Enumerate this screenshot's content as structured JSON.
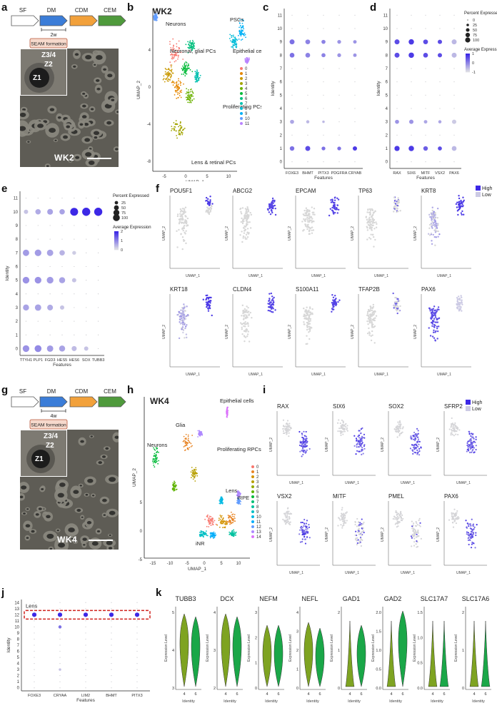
{
  "panels": {
    "a": "a",
    "b": "b",
    "c": "c",
    "d": "d",
    "e": "e",
    "f": "f",
    "g": "g",
    "h": "h",
    "i": "i",
    "j": "j",
    "k": "k"
  },
  "protocol": {
    "stages": [
      "SF",
      "DM",
      "CDM",
      "CEM"
    ],
    "colors": [
      "#ffffff",
      "#3b7dd8",
      "#f2a13b",
      "#4f9a3c"
    ],
    "seam_label": "SEAM formation",
    "duration_wk2": "2w",
    "duration_wk4": "4w"
  },
  "micrograph": {
    "wk2_label": "WK2",
    "wk4_label": "WK4",
    "zones": [
      "Z1",
      "Z2",
      "Z3/4"
    ]
  },
  "panel_b": {
    "title": "WK2",
    "xlabel": "UMAP_1",
    "ylabel": "UMAP_2",
    "annotations": [
      "Neurons",
      "Neuronal, glial PCs",
      "Proliferating PCs",
      "PSCs",
      "Epithelial cells",
      "Lens & retinal PCs"
    ],
    "legend": [
      "0",
      "1",
      "2",
      "3",
      "4",
      "5",
      "6",
      "7",
      "8",
      "9",
      "10",
      "11"
    ],
    "legend_colors": [
      "#f8766d",
      "#e58700",
      "#c99800",
      "#a3a500",
      "#6bb100",
      "#00ba38",
      "#00bf7d",
      "#00c0af",
      "#00bcd8",
      "#00b0f6",
      "#619cff",
      "#b983ff"
    ],
    "xticks": [
      "-5",
      "0",
      "5",
      "10"
    ],
    "yticks": [
      "4",
      "0",
      "-4",
      "-8"
    ]
  },
  "panel_h": {
    "xlabel": "UMAP_1",
    "ylabel": "UMAP_2",
    "title": "WK4",
    "annotations": [
      "Neurons",
      "Glia",
      "Epithelial cells",
      "Proliferating RPCs",
      "Lens",
      "iRPE",
      "iNR"
    ],
    "legend": [
      "0",
      "1",
      "2",
      "3",
      "4",
      "5",
      "6",
      "7",
      "8",
      "9",
      "10",
      "11",
      "12",
      "13",
      "14"
    ],
    "legend_colors": [
      "#f8766d",
      "#e88526",
      "#d39200",
      "#b79f00",
      "#93aa00",
      "#5eb300",
      "#00ba38",
      "#00bf74",
      "#00c19f",
      "#00bfc4",
      "#00b9e3",
      "#00adfa",
      "#619cff",
      "#ae87ff",
      "#db72fb"
    ],
    "xticks": [
      "-15",
      "-10",
      "-5",
      "0",
      "5",
      "10"
    ],
    "yticks": [
      "5",
      "0",
      "-5"
    ]
  },
  "chart_data": [
    {
      "type": "scatter",
      "id": "c",
      "xlabel": "Features",
      "ylabel": "Identity",
      "categories": [
        "FOXE3",
        "BHMT",
        "PITX3",
        "PDGFRA",
        "CRYAB"
      ],
      "identities": [
        "0",
        "1",
        "2",
        "3",
        "4",
        "5",
        "6",
        "7",
        "8",
        "9",
        "10",
        "11"
      ],
      "points": [
        {
          "x": "FOXE3",
          "y": "9",
          "pct": 60,
          "expr": 0.6
        },
        {
          "x": "BHMT",
          "y": "9",
          "pct": 55,
          "expr": 0.5
        },
        {
          "x": "PITX3",
          "y": "9",
          "pct": 40,
          "expr": 0.5
        },
        {
          "x": "PDGFRA",
          "y": "9",
          "pct": 35,
          "expr": 0.4
        },
        {
          "x": "CRYAB",
          "y": "9",
          "pct": 30,
          "expr": 0.4
        },
        {
          "x": "FOXE3",
          "y": "8",
          "pct": 55,
          "expr": 0.6
        },
        {
          "x": "BHMT",
          "y": "8",
          "pct": 55,
          "expr": 0.5
        },
        {
          "x": "PITX3",
          "y": "8",
          "pct": 40,
          "expr": 0.5
        },
        {
          "x": "PDGFRA",
          "y": "8",
          "pct": 35,
          "expr": 0.4
        },
        {
          "x": "CRYAB",
          "y": "8",
          "pct": 30,
          "expr": 0.4
        },
        {
          "x": "FOXE3",
          "y": "3",
          "pct": 40,
          "expr": 0.3
        },
        {
          "x": "BHMT",
          "y": "3",
          "pct": 25,
          "expr": 0.2
        },
        {
          "x": "PITX3",
          "y": "3",
          "pct": 15,
          "expr": 0.2
        },
        {
          "x": "FOXE3",
          "y": "1",
          "pct": 50,
          "expr": 0.6
        },
        {
          "x": "BHMT",
          "y": "1",
          "pct": 60,
          "expr": 0.8
        },
        {
          "x": "PITX3",
          "y": "1",
          "pct": 35,
          "expr": 0.6
        },
        {
          "x": "PDGFRA",
          "y": "1",
          "pct": 35,
          "expr": 0.6
        },
        {
          "x": "CRYAB",
          "y": "1",
          "pct": 45,
          "expr": 0.9
        }
      ]
    },
    {
      "type": "scatter",
      "id": "d",
      "xlabel": "Features",
      "ylabel": "Identity",
      "categories": [
        "RAX",
        "SIX6",
        "MITF",
        "VSX2",
        "PAX6"
      ],
      "identities": [
        "0",
        "1",
        "2",
        "3",
        "4",
        "5",
        "6",
        "7",
        "8",
        "9",
        "10",
        "11"
      ],
      "legend_title_size": "Percent Expressed",
      "size_levels": [
        0,
        25,
        50,
        75,
        100
      ],
      "legend_title_color": "Average Expression",
      "color_ticks": [
        "1",
        "0",
        "-1"
      ],
      "points": [
        {
          "x": "RAX",
          "y": "9",
          "pct": 60,
          "expr": 0.8
        },
        {
          "x": "SIX6",
          "y": "9",
          "pct": 70,
          "expr": 0.9
        },
        {
          "x": "MITF",
          "y": "9",
          "pct": 55,
          "expr": 0.8
        },
        {
          "x": "VSX2",
          "y": "9",
          "pct": 45,
          "expr": 0.8
        },
        {
          "x": "PAX6",
          "y": "9",
          "pct": 60,
          "expr": 0.2
        },
        {
          "x": "RAX",
          "y": "8",
          "pct": 60,
          "expr": 0.8
        },
        {
          "x": "SIX6",
          "y": "8",
          "pct": 70,
          "expr": 0.9
        },
        {
          "x": "MITF",
          "y": "8",
          "pct": 55,
          "expr": 0.8
        },
        {
          "x": "VSX2",
          "y": "8",
          "pct": 45,
          "expr": 0.8
        },
        {
          "x": "PAX6",
          "y": "8",
          "pct": 60,
          "expr": 0.2
        },
        {
          "x": "RAX",
          "y": "3",
          "pct": 40,
          "expr": 0.4
        },
        {
          "x": "SIX6",
          "y": "3",
          "pct": 45,
          "expr": 0.4
        },
        {
          "x": "MITF",
          "y": "3",
          "pct": 30,
          "expr": 0.3
        },
        {
          "x": "VSX2",
          "y": "3",
          "pct": 25,
          "expr": 0.3
        },
        {
          "x": "PAX6",
          "y": "3",
          "pct": 45,
          "expr": 0.1
        },
        {
          "x": "RAX",
          "y": "1",
          "pct": 65,
          "expr": 0.9
        },
        {
          "x": "SIX6",
          "y": "1",
          "pct": 70,
          "expr": 0.9
        },
        {
          "x": "MITF",
          "y": "1",
          "pct": 50,
          "expr": 0.7
        },
        {
          "x": "VSX2",
          "y": "1",
          "pct": 40,
          "expr": 0.8
        },
        {
          "x": "PAX6",
          "y": "1",
          "pct": 55,
          "expr": 0.2
        }
      ]
    },
    {
      "type": "scatter",
      "id": "e",
      "xlabel": "Features",
      "ylabel": "Identity",
      "categories": [
        "TTYH1",
        "PLP1",
        "FGD3",
        "HES5",
        "HES6",
        "SOX",
        "TUBB3"
      ],
      "identities": [
        "0",
        "1",
        "2",
        "3",
        "4",
        "5",
        "6",
        "7",
        "8",
        "9",
        "10",
        "11"
      ],
      "legend_title_size": "Percent Expressed",
      "size_levels": [
        25,
        50,
        75,
        100
      ],
      "legend_title_color": "Average Expression",
      "color_ticks": [
        "2",
        "1",
        "0"
      ],
      "points": [
        {
          "x": "TTYH1",
          "y": "10",
          "pct": 25,
          "expr": 0.3
        },
        {
          "x": "PLP1",
          "y": "10",
          "pct": 40,
          "expr": 0.6
        },
        {
          "x": "FGD3",
          "y": "10",
          "pct": 45,
          "expr": 0.7
        },
        {
          "x": "HES5",
          "y": "10",
          "pct": 40,
          "expr": 0.7
        },
        {
          "x": "HES6",
          "y": "10",
          "pct": 85,
          "expr": 2.2
        },
        {
          "x": "SOX",
          "y": "10",
          "pct": 90,
          "expr": 2.2
        },
        {
          "x": "TUBB3",
          "y": "10",
          "pct": 90,
          "expr": 2.2
        },
        {
          "x": "TTYH1",
          "y": "7",
          "pct": 55,
          "expr": 0.8
        },
        {
          "x": "PLP1",
          "y": "7",
          "pct": 60,
          "expr": 0.8
        },
        {
          "x": "FGD3",
          "y": "7",
          "pct": 55,
          "expr": 0.7
        },
        {
          "x": "HES5",
          "y": "7",
          "pct": 40,
          "expr": 0.5
        },
        {
          "x": "HES6",
          "y": "7",
          "pct": 20,
          "expr": 0.2
        },
        {
          "x": "TTYH1",
          "y": "5",
          "pct": 60,
          "expr": 0.9
        },
        {
          "x": "PLP1",
          "y": "5",
          "pct": 60,
          "expr": 0.9
        },
        {
          "x": "FGD3",
          "y": "5",
          "pct": 60,
          "expr": 0.8
        },
        {
          "x": "HES5",
          "y": "5",
          "pct": 50,
          "expr": 0.7
        },
        {
          "x": "HES6",
          "y": "5",
          "pct": 25,
          "expr": 0.3
        },
        {
          "x": "TTYH1",
          "y": "3",
          "pct": 50,
          "expr": 0.7
        },
        {
          "x": "PLP1",
          "y": "3",
          "pct": 55,
          "expr": 0.7
        },
        {
          "x": "FGD3",
          "y": "3",
          "pct": 45,
          "expr": 0.6
        },
        {
          "x": "HES5",
          "y": "3",
          "pct": 25,
          "expr": 0.3
        },
        {
          "x": "TTYH1",
          "y": "0",
          "pct": 60,
          "expr": 0.9
        },
        {
          "x": "PLP1",
          "y": "0",
          "pct": 65,
          "expr": 1.0
        },
        {
          "x": "FGD3",
          "y": "0",
          "pct": 55,
          "expr": 0.8
        },
        {
          "x": "HES5",
          "y": "0",
          "pct": 50,
          "expr": 0.7
        },
        {
          "x": "HES6",
          "y": "0",
          "pct": 35,
          "expr": 0.4
        },
        {
          "x": "SOX",
          "y": "0",
          "pct": 25,
          "expr": 0.3
        }
      ]
    },
    {
      "type": "scatter",
      "id": "j",
      "xlabel": "Features",
      "ylabel": "Identity",
      "categories": [
        "FOXE3",
        "CRYAA",
        "LIM2",
        "BHMT",
        "PITX3"
      ],
      "identities": [
        "0",
        "1",
        "2",
        "3",
        "4",
        "5",
        "6",
        "7",
        "8",
        "9",
        "10",
        "11",
        "12",
        "13",
        "14"
      ],
      "highlight_label": "Lens",
      "highlight_identity": "12",
      "points": [
        {
          "x": "FOXE3",
          "y": "12",
          "pct": 80,
          "expr": 2.0
        },
        {
          "x": "CRYAA",
          "y": "12",
          "pct": 80,
          "expr": 2.0
        },
        {
          "x": "LIM2",
          "y": "12",
          "pct": 80,
          "expr": 2.0
        },
        {
          "x": "BHMT",
          "y": "12",
          "pct": 80,
          "expr": 2.0
        },
        {
          "x": "PITX3",
          "y": "12",
          "pct": 80,
          "expr": 2.0
        },
        {
          "x": "CRYAA",
          "y": "10",
          "pct": 40,
          "expr": 1.2
        },
        {
          "x": "CRYAA",
          "y": "3",
          "pct": 25,
          "expr": 0.3
        }
      ]
    },
    {
      "type": "area",
      "id": "k",
      "xlabel": "Identity",
      "ylabel": "Expression Level",
      "genes": [
        "TUBB3",
        "DCX",
        "NEFM",
        "NEFL",
        "GAD1",
        "GAD2",
        "SLC17A7",
        "SLC17A6"
      ],
      "groups": [
        "4",
        "6"
      ],
      "group_colors": [
        "#7ea321",
        "#1aa748"
      ],
      "yticks": [
        [
          "5",
          "4",
          "3"
        ],
        [
          "4",
          "3",
          "2"
        ],
        [
          "3",
          "2",
          "1",
          "0"
        ],
        [
          "4",
          "3",
          "2",
          "1",
          "0"
        ],
        [
          "2",
          "1",
          "0"
        ],
        [
          "2.0",
          "1.5",
          "1.0",
          "0.5",
          "0.0"
        ],
        [
          "1.5",
          "1.0",
          "0.5",
          "0.0"
        ],
        [
          "2",
          "1",
          "0"
        ]
      ]
    }
  ],
  "panel_f": {
    "genes_row1": [
      "POU5F1",
      "ABCG2",
      "EPCAM",
      "TP63",
      "KRT8"
    ],
    "genes_row2": [
      "KRT18",
      "CLDN4",
      "S100A11",
      "TFAP2B",
      "PAX6"
    ],
    "legend_high": "High",
    "legend_low": "Low",
    "xlabel": "UMAP_1",
    "ylabel": "UMAP_2"
  },
  "panel_i": {
    "genes_row1": [
      "RAX",
      "SIX6",
      "SOX2",
      "SFRP2"
    ],
    "genes_row2": [
      "VSX2",
      "MITF",
      "PMEL",
      "PAX6"
    ],
    "legend_high": "High",
    "legend_low": "Low",
    "xlabel": "UMAP_1",
    "ylabel": "UMAP_2"
  }
}
